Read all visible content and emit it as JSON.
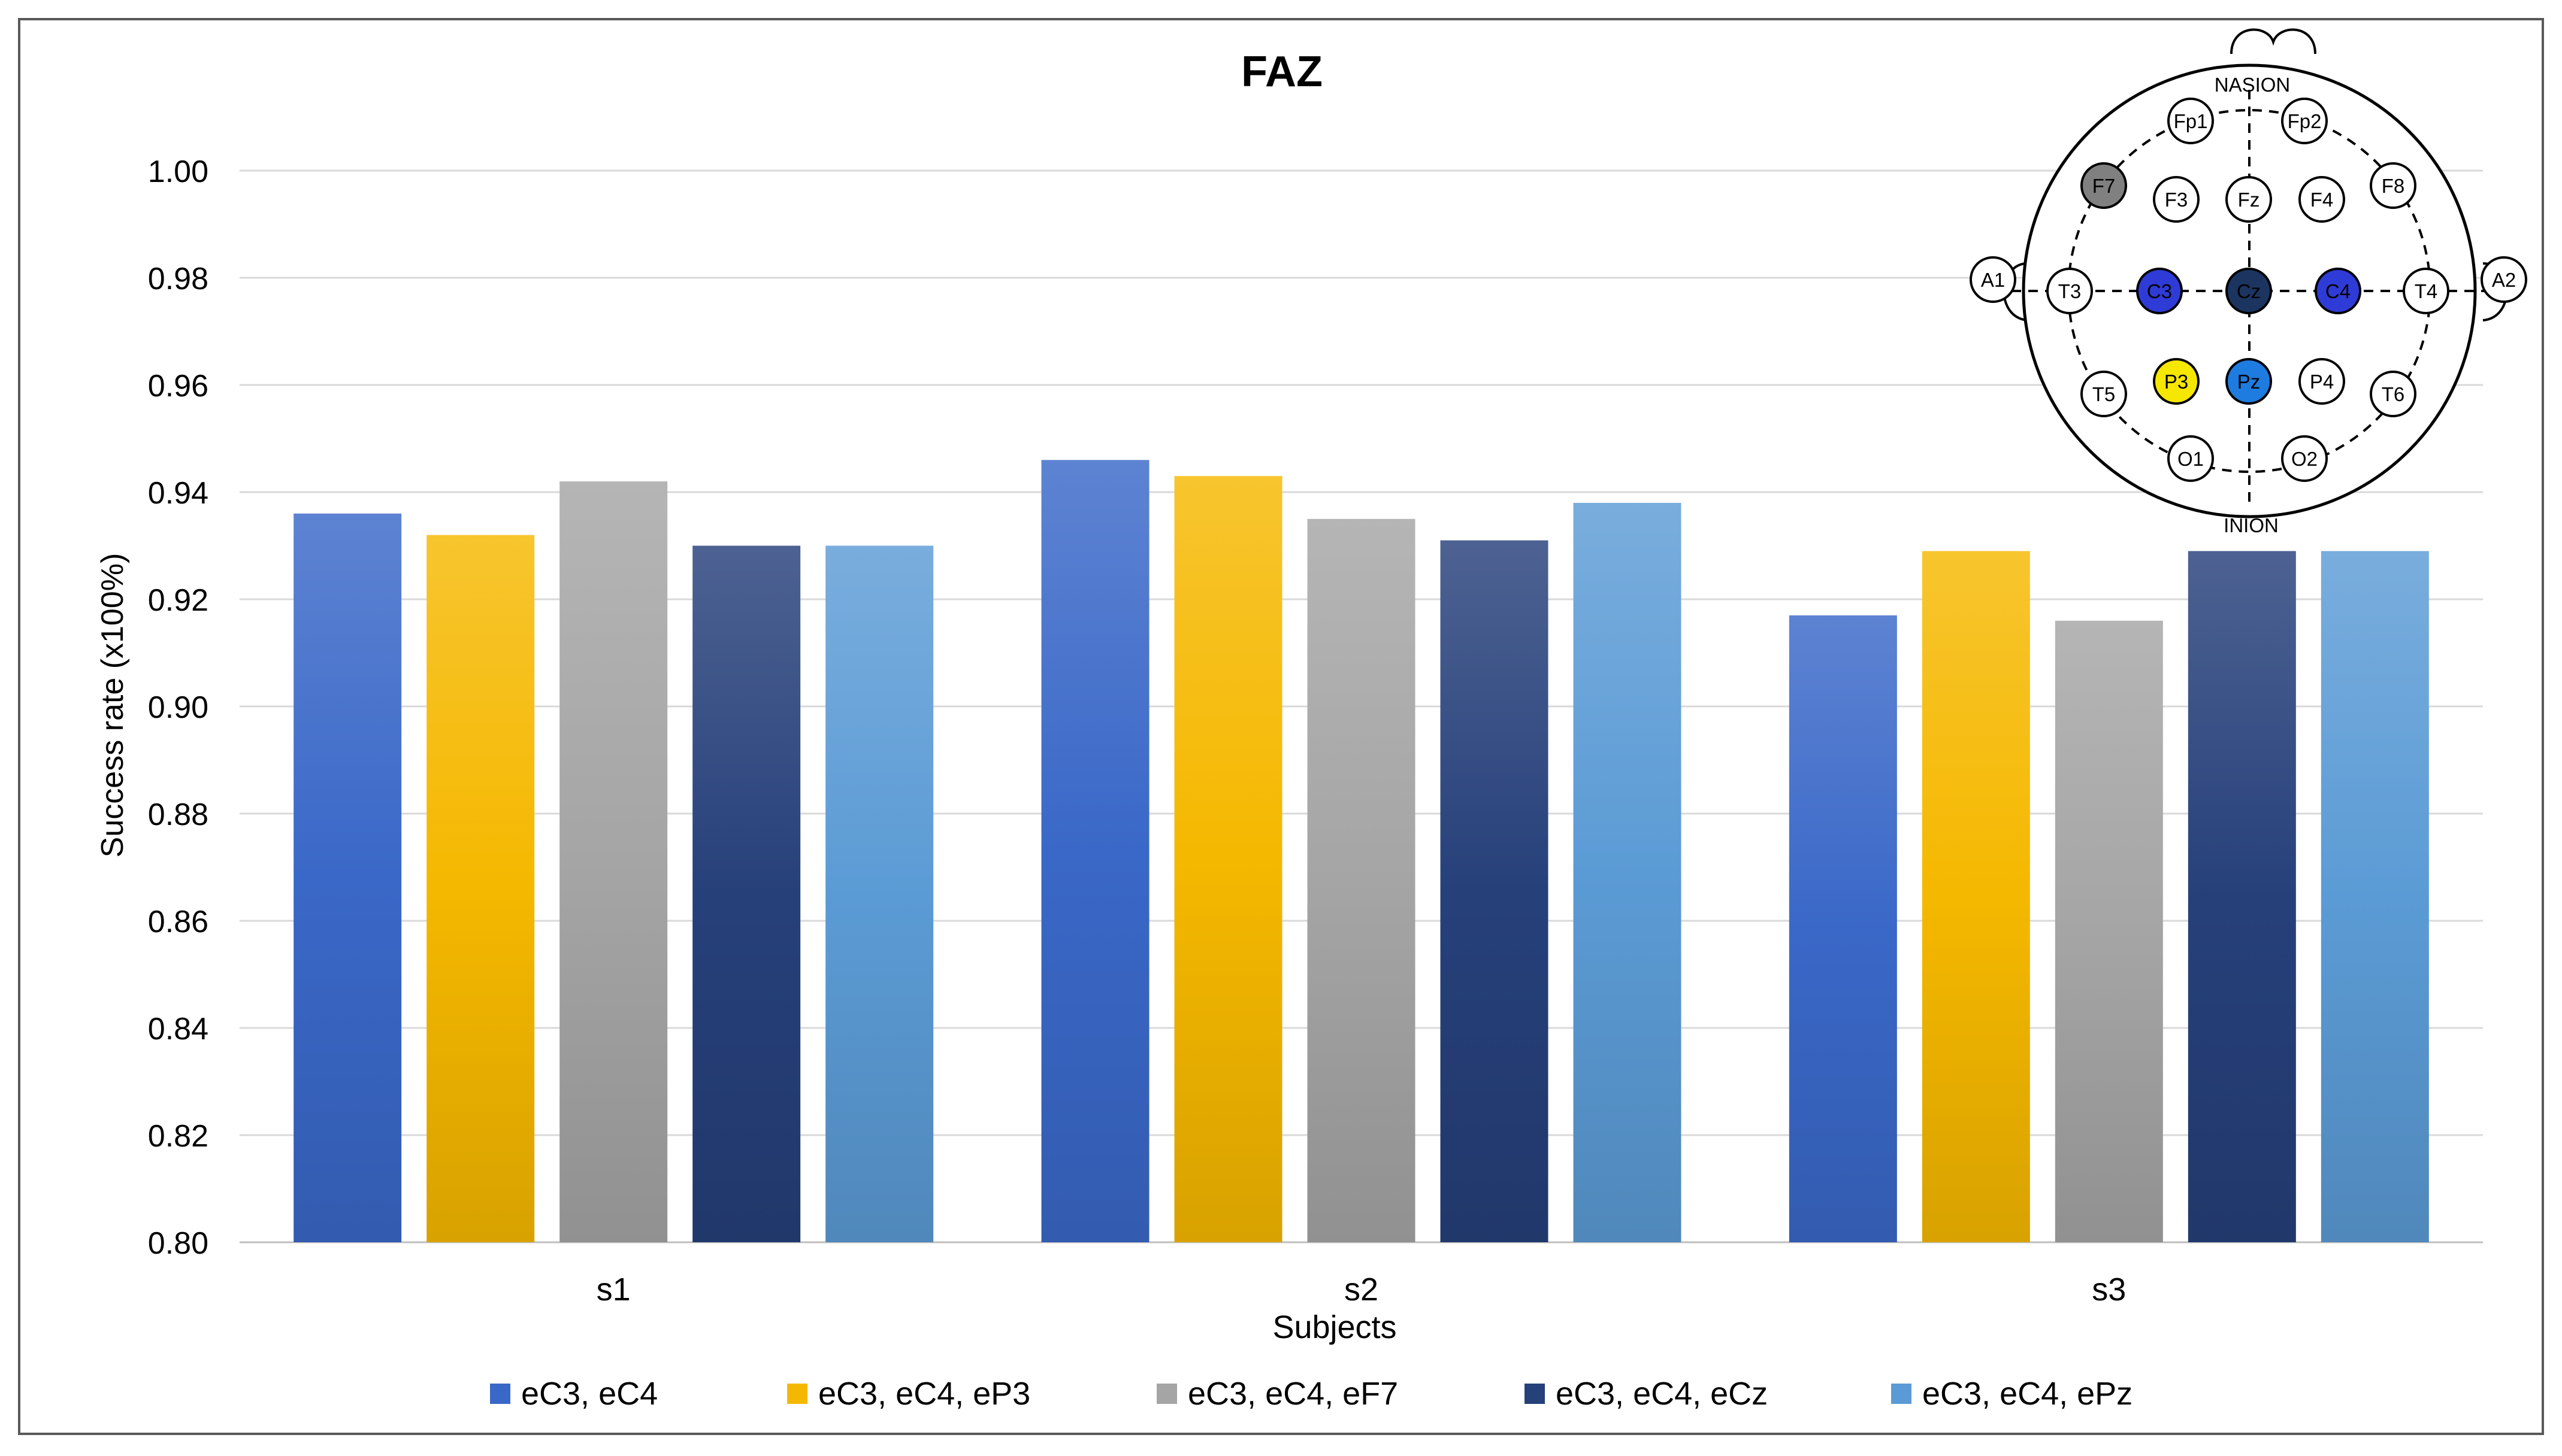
{
  "chart_data": {
    "type": "bar",
    "title": "FAZ",
    "xlabel": "Subjects",
    "ylabel": "Success rate (x100%)",
    "ylim": [
      0.8,
      1.0
    ],
    "yticks": [
      "0.80",
      "0.82",
      "0.84",
      "0.86",
      "0.88",
      "0.90",
      "0.92",
      "0.94",
      "0.96",
      "0.98",
      "1.00"
    ],
    "categories": [
      "s1",
      "s2",
      "s3"
    ],
    "grid": true,
    "legend_position": "bottom",
    "series": [
      {
        "name": "eC3, eC4",
        "values": [
          0.936,
          0.946,
          0.917
        ],
        "color": "#3A68C8"
      },
      {
        "name": "eC3, eC4, eP3",
        "values": [
          0.932,
          0.943,
          0.929
        ],
        "color": "#F5B800"
      },
      {
        "name": "eC3, eC4, eF7",
        "values": [
          0.942,
          0.935,
          0.916
        ],
        "color": "#A5A5A5"
      },
      {
        "name": "eC3, eC4, eCz",
        "values": [
          0.93,
          0.931,
          0.929
        ],
        "color": "#26407A"
      },
      {
        "name": "eC3, eC4, ePz",
        "values": [
          0.93,
          0.938,
          0.929
        ],
        "color": "#5B9BD5"
      }
    ]
  },
  "electrode_map": {
    "top_label": "NASION",
    "bottom_label": "INION",
    "electrodes": [
      {
        "label": "Fp1",
        "fill": "#FFFFFF"
      },
      {
        "label": "Fp2",
        "fill": "#FFFFFF"
      },
      {
        "label": "F7",
        "fill": "#808080"
      },
      {
        "label": "F3",
        "fill": "#FFFFFF"
      },
      {
        "label": "Fz",
        "fill": "#FFFFFF"
      },
      {
        "label": "F4",
        "fill": "#FFFFFF"
      },
      {
        "label": "F8",
        "fill": "#FFFFFF"
      },
      {
        "label": "A1",
        "fill": "#FFFFFF"
      },
      {
        "label": "T3",
        "fill": "#FFFFFF"
      },
      {
        "label": "C3",
        "fill": "#2F3BD6"
      },
      {
        "label": "Cz",
        "fill": "#1B3560"
      },
      {
        "label": "C4",
        "fill": "#2F3BD6"
      },
      {
        "label": "T4",
        "fill": "#FFFFFF"
      },
      {
        "label": "A2",
        "fill": "#FFFFFF"
      },
      {
        "label": "T5",
        "fill": "#FFFFFF"
      },
      {
        "label": "P3",
        "fill": "#F5E700"
      },
      {
        "label": "Pz",
        "fill": "#1E7BE0"
      },
      {
        "label": "P4",
        "fill": "#FFFFFF"
      },
      {
        "label": "T6",
        "fill": "#FFFFFF"
      },
      {
        "label": "O1",
        "fill": "#FFFFFF"
      },
      {
        "label": "O2",
        "fill": "#FFFFFF"
      }
    ]
  }
}
